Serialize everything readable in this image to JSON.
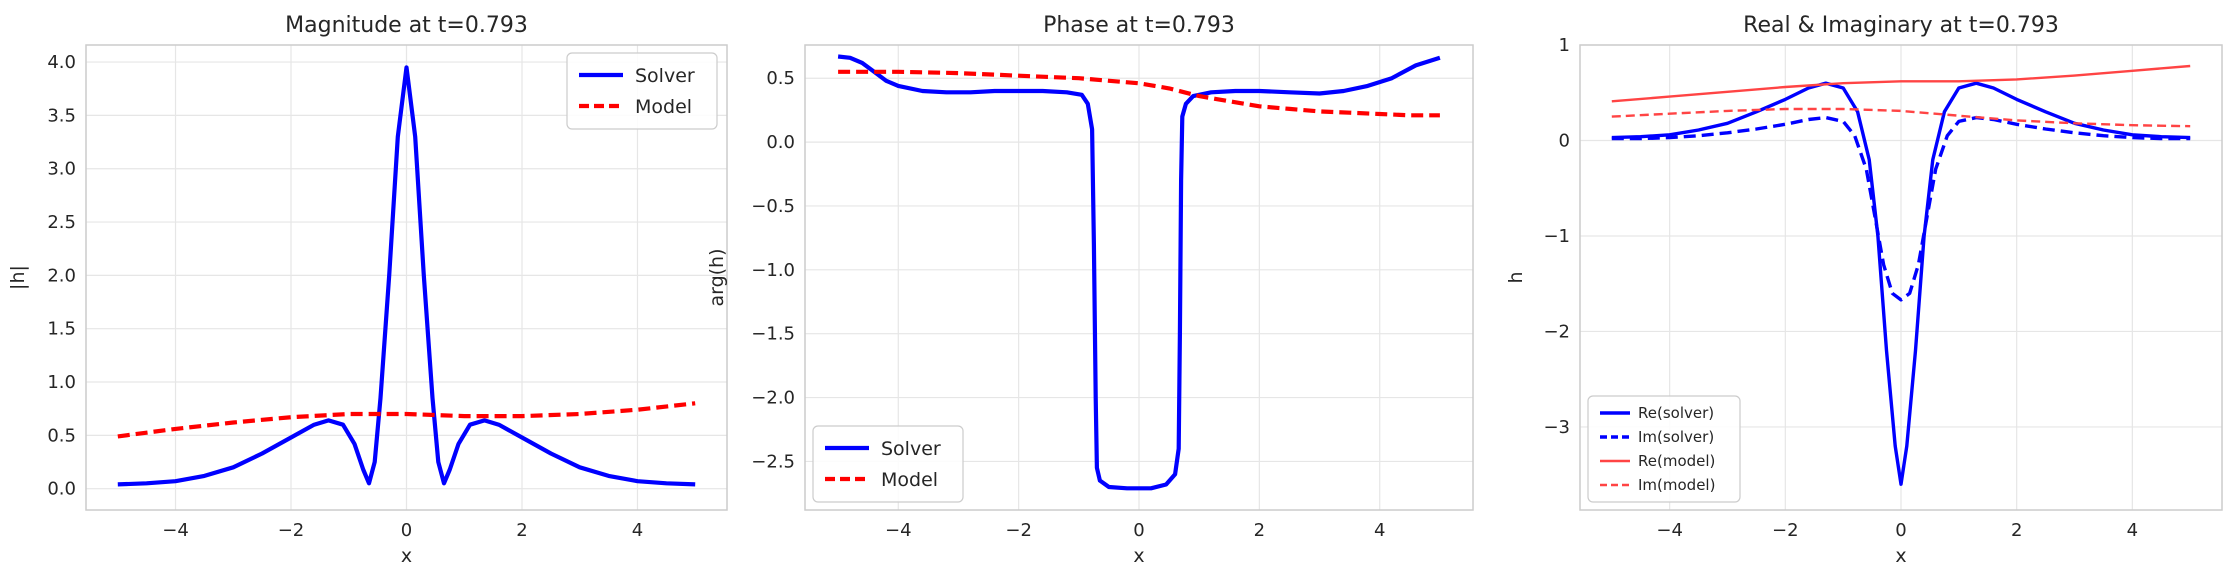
{
  "chart_data": [
    {
      "id": "magnitude",
      "type": "line",
      "title": "Magnitude at t=0.793",
      "xlabel": "x",
      "ylabel": "|h|",
      "xlim": [
        -5.55,
        5.55
      ],
      "ylim": [
        -0.2,
        4.16
      ],
      "xticks": [
        -4,
        -2,
        0,
        2,
        4
      ],
      "xtick_labels": [
        "−4",
        "−2",
        "0",
        "2",
        "4"
      ],
      "yticks": [
        0.0,
        0.5,
        1.0,
        1.5,
        2.0,
        2.5,
        3.0,
        3.5,
        4.0
      ],
      "ytick_labels": [
        "0.0",
        "0.5",
        "1.0",
        "1.5",
        "2.0",
        "2.5",
        "3.0",
        "3.5",
        "4.0"
      ],
      "grid": true,
      "legend_position": "upper right",
      "series": [
        {
          "name": "Solver",
          "color": "#0000ff",
          "dash": "solid",
          "points": [
            [
              -5.0,
              0.04
            ],
            [
              -4.5,
              0.05
            ],
            [
              -4.0,
              0.07
            ],
            [
              -3.5,
              0.12
            ],
            [
              -3.0,
              0.2
            ],
            [
              -2.5,
              0.33
            ],
            [
              -2.0,
              0.48
            ],
            [
              -1.6,
              0.6
            ],
            [
              -1.35,
              0.64
            ],
            [
              -1.1,
              0.6
            ],
            [
              -0.9,
              0.42
            ],
            [
              -0.75,
              0.18
            ],
            [
              -0.65,
              0.05
            ],
            [
              -0.55,
              0.25
            ],
            [
              -0.45,
              0.85
            ],
            [
              -0.3,
              2.0
            ],
            [
              -0.15,
              3.3
            ],
            [
              0.0,
              3.95
            ],
            [
              0.15,
              3.3
            ],
            [
              0.3,
              2.0
            ],
            [
              0.45,
              0.85
            ],
            [
              0.55,
              0.25
            ],
            [
              0.65,
              0.05
            ],
            [
              0.75,
              0.18
            ],
            [
              0.9,
              0.42
            ],
            [
              1.1,
              0.6
            ],
            [
              1.35,
              0.64
            ],
            [
              1.6,
              0.6
            ],
            [
              2.0,
              0.48
            ],
            [
              2.5,
              0.33
            ],
            [
              3.0,
              0.2
            ],
            [
              3.5,
              0.12
            ],
            [
              4.0,
              0.07
            ],
            [
              4.5,
              0.05
            ],
            [
              5.0,
              0.04
            ]
          ]
        },
        {
          "name": "Model",
          "color": "#ff0000",
          "dash": "dashed",
          "points": [
            [
              -5.0,
              0.49
            ],
            [
              -4.0,
              0.56
            ],
            [
              -3.0,
              0.62
            ],
            [
              -2.0,
              0.67
            ],
            [
              -1.0,
              0.7
            ],
            [
              0.0,
              0.7
            ],
            [
              1.0,
              0.68
            ],
            [
              2.0,
              0.68
            ],
            [
              3.0,
              0.7
            ],
            [
              4.0,
              0.74
            ],
            [
              5.0,
              0.8
            ]
          ]
        }
      ]
    },
    {
      "id": "phase",
      "type": "line",
      "title": "Phase at t=0.793",
      "xlabel": "x",
      "ylabel": "arg(h)",
      "xlim": [
        -5.55,
        5.55
      ],
      "ylim": [
        -2.88,
        0.76
      ],
      "xticks": [
        -4,
        -2,
        0,
        2,
        4
      ],
      "xtick_labels": [
        "−4",
        "−2",
        "0",
        "2",
        "4"
      ],
      "yticks": [
        0.5,
        0.0,
        -0.5,
        -1.0,
        -1.5,
        -2.0,
        -2.5
      ],
      "ytick_labels": [
        "0.5",
        "0.0",
        "−0.5",
        "−1.0",
        "−1.5",
        "−2.0",
        "−2.5"
      ],
      "grid": true,
      "legend_position": "lower left",
      "series": [
        {
          "name": "Solver",
          "color": "#0000ff",
          "dash": "solid",
          "points": [
            [
              -5.0,
              0.67
            ],
            [
              -4.8,
              0.66
            ],
            [
              -4.6,
              0.62
            ],
            [
              -4.4,
              0.55
            ],
            [
              -4.2,
              0.48
            ],
            [
              -4.0,
              0.44
            ],
            [
              -3.6,
              0.4
            ],
            [
              -3.2,
              0.39
            ],
            [
              -2.8,
              0.39
            ],
            [
              -2.4,
              0.4
            ],
            [
              -2.0,
              0.4
            ],
            [
              -1.6,
              0.4
            ],
            [
              -1.2,
              0.39
            ],
            [
              -0.95,
              0.37
            ],
            [
              -0.85,
              0.3
            ],
            [
              -0.78,
              0.1
            ],
            [
              -0.75,
              -0.8
            ],
            [
              -0.72,
              -2.0
            ],
            [
              -0.7,
              -2.55
            ],
            [
              -0.65,
              -2.65
            ],
            [
              -0.5,
              -2.7
            ],
            [
              -0.2,
              -2.71
            ],
            [
              0.0,
              -2.71
            ],
            [
              0.2,
              -2.71
            ],
            [
              0.45,
              -2.68
            ],
            [
              0.6,
              -2.6
            ],
            [
              0.66,
              -2.4
            ],
            [
              0.68,
              -1.5
            ],
            [
              0.7,
              -0.3
            ],
            [
              0.72,
              0.2
            ],
            [
              0.78,
              0.3
            ],
            [
              0.9,
              0.36
            ],
            [
              1.2,
              0.39
            ],
            [
              1.6,
              0.4
            ],
            [
              2.0,
              0.4
            ],
            [
              2.5,
              0.39
            ],
            [
              3.0,
              0.38
            ],
            [
              3.4,
              0.4
            ],
            [
              3.8,
              0.44
            ],
            [
              4.2,
              0.5
            ],
            [
              4.6,
              0.6
            ],
            [
              5.0,
              0.66
            ]
          ]
        },
        {
          "name": "Model",
          "color": "#ff0000",
          "dash": "dashed",
          "points": [
            [
              -5.0,
              0.55
            ],
            [
              -4.0,
              0.55
            ],
            [
              -3.0,
              0.54
            ],
            [
              -2.0,
              0.52
            ],
            [
              -1.0,
              0.5
            ],
            [
              0.0,
              0.46
            ],
            [
              0.5,
              0.42
            ],
            [
              1.0,
              0.36
            ],
            [
              1.5,
              0.32
            ],
            [
              2.0,
              0.28
            ],
            [
              2.5,
              0.26
            ],
            [
              3.0,
              0.24
            ],
            [
              3.5,
              0.23
            ],
            [
              4.0,
              0.22
            ],
            [
              4.5,
              0.21
            ],
            [
              5.0,
              0.21
            ]
          ]
        }
      ]
    },
    {
      "id": "real-imag",
      "type": "line",
      "title": "Real & Imaginary at t=0.793",
      "xlabel": "x",
      "ylabel": "h",
      "xlim": [
        -5.55,
        5.55
      ],
      "ylim": [
        -3.87,
        1.0
      ],
      "xticks": [
        -4,
        -2,
        0,
        2,
        4
      ],
      "xtick_labels": [
        "−4",
        "−2",
        "0",
        "2",
        "4"
      ],
      "yticks": [
        1,
        0,
        -1,
        -2,
        -3
      ],
      "ytick_labels": [
        "1",
        "0",
        "−1",
        "−2",
        "−3"
      ],
      "grid": true,
      "legend_position": "lower left",
      "series": [
        {
          "name": "Re(solver)",
          "color": "#0000ff",
          "dash": "solid",
          "points": [
            [
              -5.0,
              0.03
            ],
            [
              -4.5,
              0.04
            ],
            [
              -4.0,
              0.06
            ],
            [
              -3.5,
              0.11
            ],
            [
              -3.0,
              0.18
            ],
            [
              -2.5,
              0.3
            ],
            [
              -2.0,
              0.43
            ],
            [
              -1.6,
              0.55
            ],
            [
              -1.3,
              0.6
            ],
            [
              -1.0,
              0.55
            ],
            [
              -0.75,
              0.3
            ],
            [
              -0.55,
              -0.2
            ],
            [
              -0.4,
              -1.0
            ],
            [
              -0.25,
              -2.2
            ],
            [
              -0.1,
              -3.2
            ],
            [
              0.0,
              -3.6
            ],
            [
              0.1,
              -3.2
            ],
            [
              0.25,
              -2.2
            ],
            [
              0.4,
              -1.0
            ],
            [
              0.55,
              -0.2
            ],
            [
              0.75,
              0.3
            ],
            [
              1.0,
              0.55
            ],
            [
              1.3,
              0.6
            ],
            [
              1.6,
              0.55
            ],
            [
              2.0,
              0.43
            ],
            [
              2.5,
              0.3
            ],
            [
              3.0,
              0.18
            ],
            [
              3.5,
              0.11
            ],
            [
              4.0,
              0.06
            ],
            [
              4.5,
              0.04
            ],
            [
              5.0,
              0.03
            ]
          ]
        },
        {
          "name": "Im(solver)",
          "color": "#0000ff",
          "dash": "dashed",
          "points": [
            [
              -5.0,
              0.02
            ],
            [
              -4.5,
              0.02
            ],
            [
              -4.0,
              0.03
            ],
            [
              -3.5,
              0.05
            ],
            [
              -3.0,
              0.08
            ],
            [
              -2.5,
              0.12
            ],
            [
              -2.0,
              0.17
            ],
            [
              -1.6,
              0.22
            ],
            [
              -1.3,
              0.24
            ],
            [
              -1.0,
              0.2
            ],
            [
              -0.8,
              0.05
            ],
            [
              -0.6,
              -0.3
            ],
            [
              -0.45,
              -0.8
            ],
            [
              -0.3,
              -1.3
            ],
            [
              -0.15,
              -1.6
            ],
            [
              0.0,
              -1.67
            ],
            [
              0.15,
              -1.6
            ],
            [
              0.3,
              -1.3
            ],
            [
              0.45,
              -0.8
            ],
            [
              0.6,
              -0.3
            ],
            [
              0.8,
              0.05
            ],
            [
              1.0,
              0.2
            ],
            [
              1.3,
              0.24
            ],
            [
              1.6,
              0.22
            ],
            [
              2.0,
              0.17
            ],
            [
              2.5,
              0.12
            ],
            [
              3.0,
              0.08
            ],
            [
              3.5,
              0.05
            ],
            [
              4.0,
              0.03
            ],
            [
              4.5,
              0.02
            ],
            [
              5.0,
              0.02
            ]
          ]
        },
        {
          "name": "Re(model)",
          "color": "#ff4444",
          "dash": "solid",
          "points": [
            [
              -5.0,
              0.41
            ],
            [
              -4.0,
              0.46
            ],
            [
              -3.0,
              0.51
            ],
            [
              -2.0,
              0.56
            ],
            [
              -1.0,
              0.6
            ],
            [
              0.0,
              0.62
            ],
            [
              1.0,
              0.62
            ],
            [
              2.0,
              0.64
            ],
            [
              3.0,
              0.68
            ],
            [
              4.0,
              0.73
            ],
            [
              5.0,
              0.78
            ]
          ]
        },
        {
          "name": "Im(model)",
          "color": "#ff4444",
          "dash": "dashed",
          "points": [
            [
              -5.0,
              0.25
            ],
            [
              -4.0,
              0.28
            ],
            [
              -3.0,
              0.31
            ],
            [
              -2.0,
              0.33
            ],
            [
              -1.0,
              0.33
            ],
            [
              0.0,
              0.31
            ],
            [
              1.0,
              0.26
            ],
            [
              2.0,
              0.21
            ],
            [
              3.0,
              0.18
            ],
            [
              4.0,
              0.16
            ],
            [
              5.0,
              0.15
            ]
          ]
        }
      ]
    }
  ]
}
